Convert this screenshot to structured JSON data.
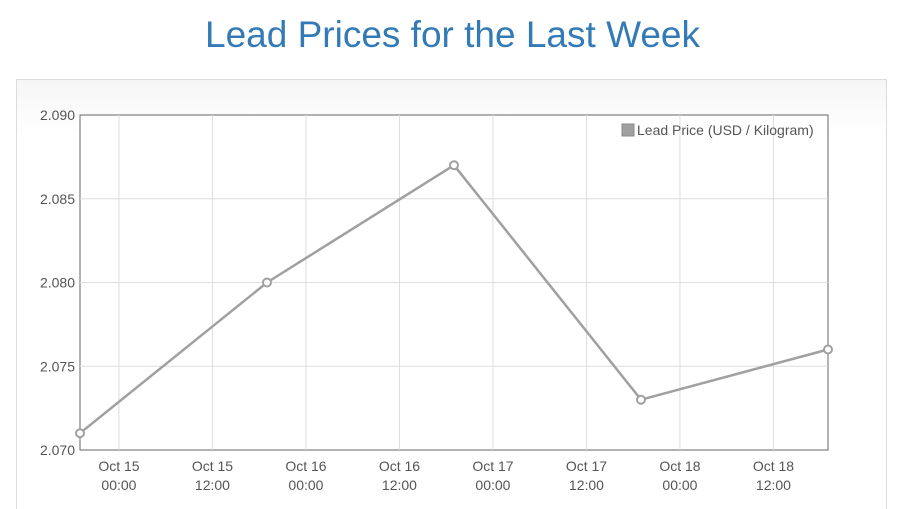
{
  "page": {
    "title": "Lead Prices for the Last Week"
  },
  "chart_data": {
    "type": "line",
    "title": "Lead Prices for the Last Week",
    "xlabel": "",
    "ylabel": "",
    "x_range": [
      "2023-10-14T19:00",
      "2023-10-18T19:00"
    ],
    "ylim": [
      2.07,
      2.09
    ],
    "y_ticks": [
      "2.090",
      "2.085",
      "2.080",
      "2.075",
      "2.070"
    ],
    "x_ticks": [
      {
        "t": "2023-10-15T00:00",
        "line1": "Oct 15",
        "line2": "00:00"
      },
      {
        "t": "2023-10-15T12:00",
        "line1": "Oct 15",
        "line2": "12:00"
      },
      {
        "t": "2023-10-16T00:00",
        "line1": "Oct 16",
        "line2": "00:00"
      },
      {
        "t": "2023-10-16T12:00",
        "line1": "Oct 16",
        "line2": "12:00"
      },
      {
        "t": "2023-10-17T00:00",
        "line1": "Oct 17",
        "line2": "00:00"
      },
      {
        "t": "2023-10-17T12:00",
        "line1": "Oct 17",
        "line2": "12:00"
      },
      {
        "t": "2023-10-18T00:00",
        "line1": "Oct 18",
        "line2": "00:00"
      },
      {
        "t": "2023-10-18T12:00",
        "line1": "Oct 18",
        "line2": "12:00"
      }
    ],
    "grid": true,
    "legend_position": "top-right",
    "series": [
      {
        "name": "Lead Price (USD / Kilogram)",
        "color": "#a0a0a0",
        "points": [
          {
            "x": "2023-10-14T19:00",
            "y": 2.071
          },
          {
            "x": "2023-10-15T19:00",
            "y": 2.08
          },
          {
            "x": "2023-10-16T19:00",
            "y": 2.087
          },
          {
            "x": "2023-10-17T19:00",
            "y": 2.073
          },
          {
            "x": "2023-10-18T19:00",
            "y": 2.076
          }
        ]
      }
    ]
  }
}
